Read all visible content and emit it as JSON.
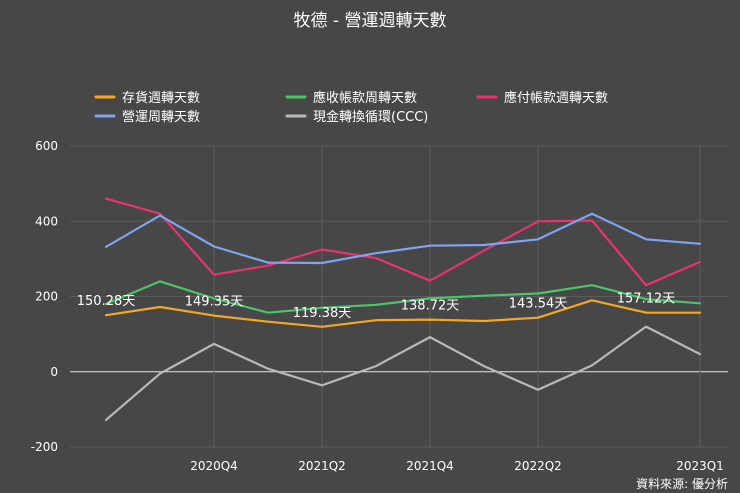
{
  "chart_data": {
    "type": "line",
    "title": "牧德 - 營運週轉天數",
    "x": [
      "2020Q2",
      "2020Q3",
      "2020Q4",
      "2021Q1",
      "2021Q2",
      "2021Q3",
      "2021Q4",
      "2022Q1",
      "2022Q2",
      "2022Q3",
      "2022Q4",
      "2023Q1"
    ],
    "x_tick_labels": [
      {
        "index": 2,
        "label": "2020Q4"
      },
      {
        "index": 4,
        "label": "2021Q2"
      },
      {
        "index": 6,
        "label": "2021Q4"
      },
      {
        "index": 8,
        "label": "2022Q2"
      },
      {
        "index": 11,
        "label": "2023Q1"
      }
    ],
    "ylim": [
      -200,
      600
    ],
    "yticks": [
      -200,
      0,
      200,
      400,
      600
    ],
    "ytick_labels": [
      "-200",
      "0",
      "200",
      "400",
      "600"
    ],
    "grid": true,
    "legend_position": "top",
    "series": [
      {
        "name": "存貨週轉天數",
        "color": "#f5a623",
        "values": [
          150.28,
          172,
          149.35,
          133,
          119.38,
          137,
          138.72,
          135,
          143.54,
          190,
          157.12,
          157
        ]
      },
      {
        "name": "應收帳款周轉天數",
        "color": "#4cc46a",
        "values": [
          180,
          240,
          195,
          157,
          170,
          178,
          195,
          202,
          208,
          230,
          193,
          182
        ]
      },
      {
        "name": "應付帳款週轉天數",
        "color": "#e8336c",
        "values": [
          460,
          420,
          258,
          282,
          325,
          302,
          242,
          322,
          400,
          402,
          230,
          292
        ]
      },
      {
        "name": "營運周轉天數",
        "color": "#7fa3ee",
        "values": [
          332,
          415,
          333,
          290,
          289,
          315,
          335,
          337,
          352,
          420,
          352,
          340
        ]
      },
      {
        "name": "現金轉換循環(CCC)",
        "color": "#b8b8b8",
        "values": [
          -128,
          -5,
          74,
          8,
          -36,
          15,
          92,
          15,
          -48,
          17,
          120,
          47
        ]
      }
    ],
    "annotations": [
      {
        "series": "存貨週轉天數",
        "index": 0,
        "text": "150.28天"
      },
      {
        "series": "存貨週轉天數",
        "index": 2,
        "text": "149.35天"
      },
      {
        "series": "存貨週轉天數",
        "index": 4,
        "text": "119.38天"
      },
      {
        "series": "存貨週轉天數",
        "index": 6,
        "text": "138.72天"
      },
      {
        "series": "存貨週轉天數",
        "index": 8,
        "text": "143.54天"
      },
      {
        "series": "存貨週轉天數",
        "index": 10,
        "text": "157.12天"
      }
    ],
    "source": "資料來源: 優分析"
  }
}
